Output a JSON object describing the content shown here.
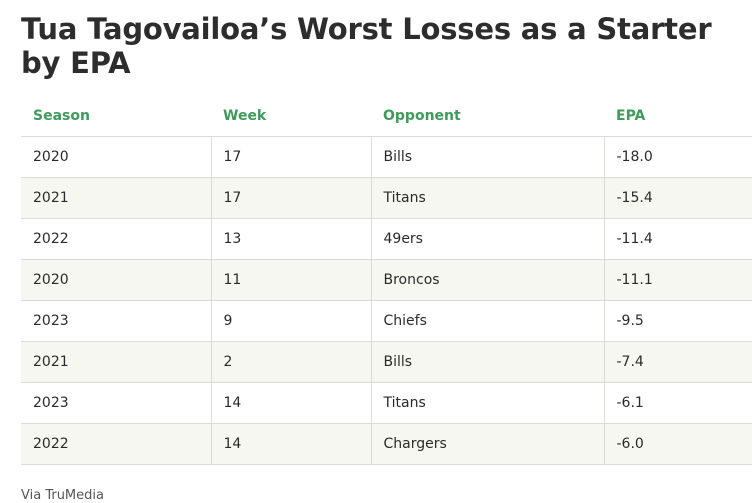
{
  "title": "Tua Tagovailoa’s Worst Losses as a Starter by EPA",
  "table": {
    "headers": [
      "Season",
      "Week",
      "Opponent",
      "EPA"
    ],
    "rows": [
      [
        "2020",
        "17",
        "Bills",
        "-18.0"
      ],
      [
        "2021",
        "17",
        "Titans",
        "-15.4"
      ],
      [
        "2022",
        "13",
        "49ers",
        "-11.4"
      ],
      [
        "2020",
        "11",
        "Broncos",
        "-11.1"
      ],
      [
        "2023",
        "9",
        "Chiefs",
        "-9.5"
      ],
      [
        "2021",
        "2",
        "Bills",
        "-7.4"
      ],
      [
        "2023",
        "14",
        "Titans",
        "-6.1"
      ],
      [
        "2022",
        "14",
        "Chargers",
        "-6.0"
      ]
    ]
  },
  "source": "Via TruMedia",
  "colors": {
    "header_text": "#3e9b5a",
    "stripe": "#f7f7f2",
    "border": "#dcdcd6"
  }
}
